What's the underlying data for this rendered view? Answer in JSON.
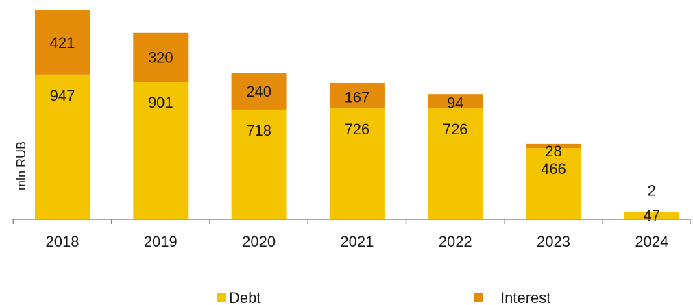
{
  "chart_data": {
    "type": "bar",
    "stacked": true,
    "ylabel": "mln RUB",
    "categories": [
      "2018",
      "2019",
      "2020",
      "2021",
      "2022",
      "2023",
      "2024"
    ],
    "series": [
      {
        "name": "Debt",
        "color": "#F5C400",
        "values": [
          947,
          901,
          718,
          726,
          726,
          466,
          47
        ]
      },
      {
        "name": "Interest",
        "color": "#E48C0A",
        "values": [
          421,
          320,
          240,
          167,
          94,
          28,
          2
        ]
      }
    ],
    "ylim": [
      0,
      1368
    ],
    "grid": false,
    "legend_position": "bottom"
  }
}
